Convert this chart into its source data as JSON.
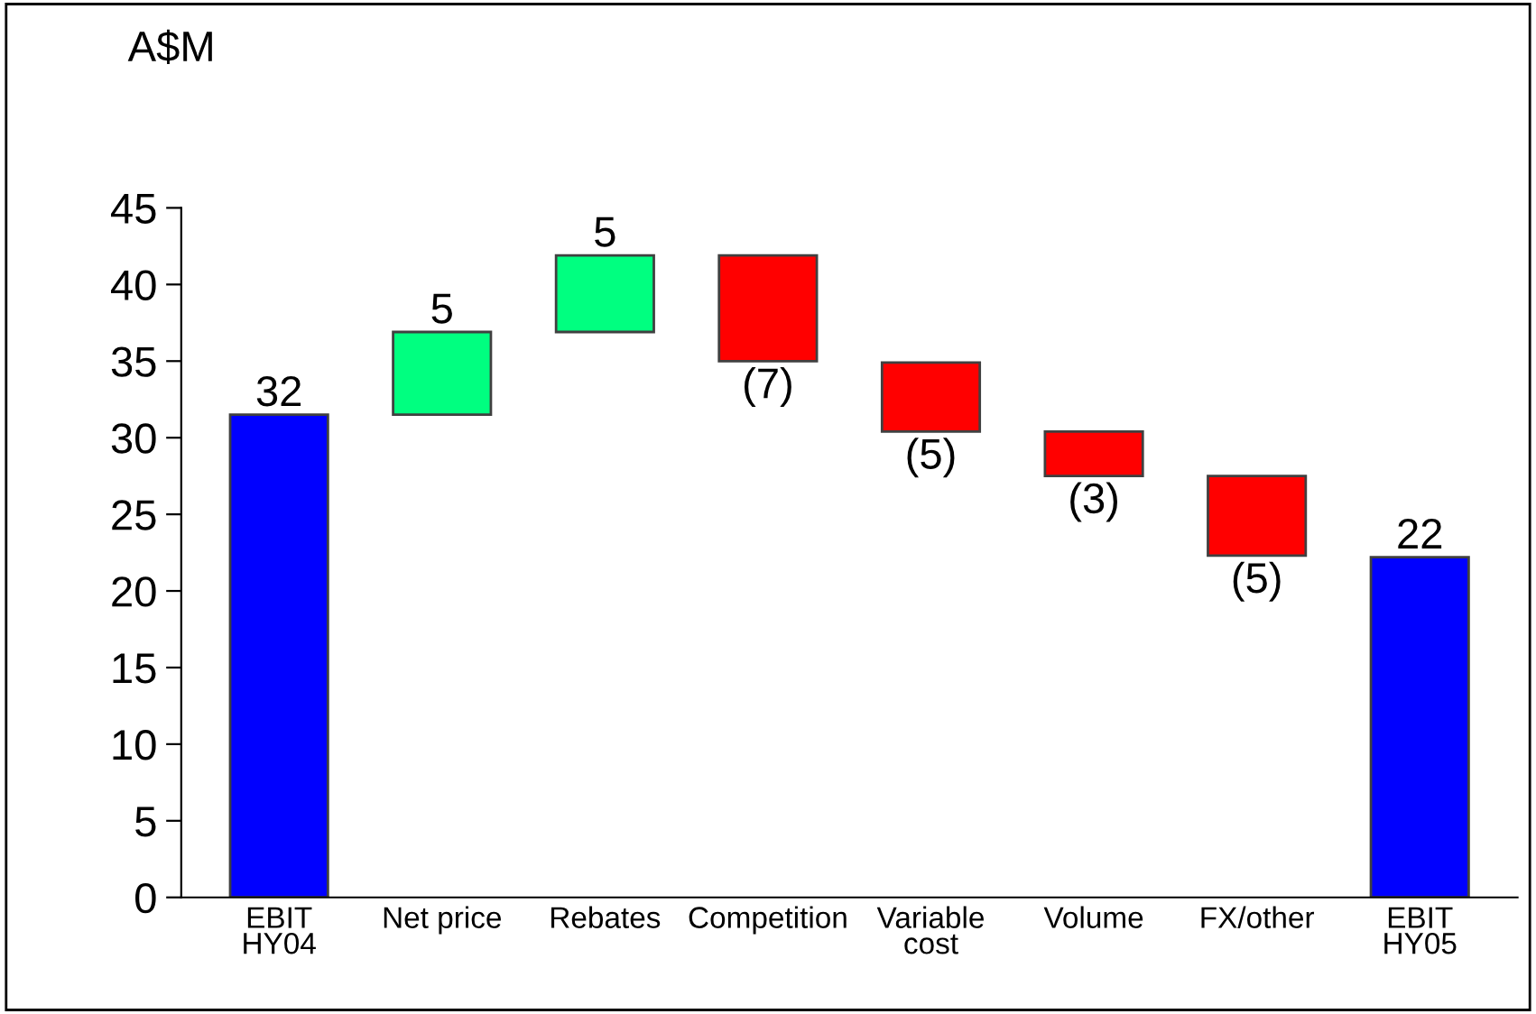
{
  "chart_data": {
    "type": "bar",
    "ylabel": "A$M",
    "categories": [
      "EBIT\nHY04",
      "Net price",
      "Rebates",
      "Competition",
      "Variable\ncost",
      "Volume",
      "FX/other",
      "EBIT\nHY05"
    ],
    "base": [
      0,
      31.5,
      36.9,
      41.9,
      34.9,
      30.4,
      27.5,
      0
    ],
    "values": [
      31.5,
      5.4,
      5.0,
      -6.9,
      -4.5,
      -2.9,
      -5.2,
      22.2
    ],
    "colors": [
      "#0000ff",
      "#00ff80",
      "#00ff80",
      "#ff0000",
      "#ff0000",
      "#ff0000",
      "#ff0000",
      "#0000ff"
    ],
    "value_labels": [
      "32",
      "5",
      "5",
      "(7)",
      "(5)",
      "(3)",
      "(5)",
      "22"
    ],
    "ylim": [
      0,
      45
    ],
    "yticks": [
      0,
      5,
      10,
      15,
      20,
      25,
      30,
      35,
      40,
      45
    ],
    "grid": false,
    "legend": false
  }
}
